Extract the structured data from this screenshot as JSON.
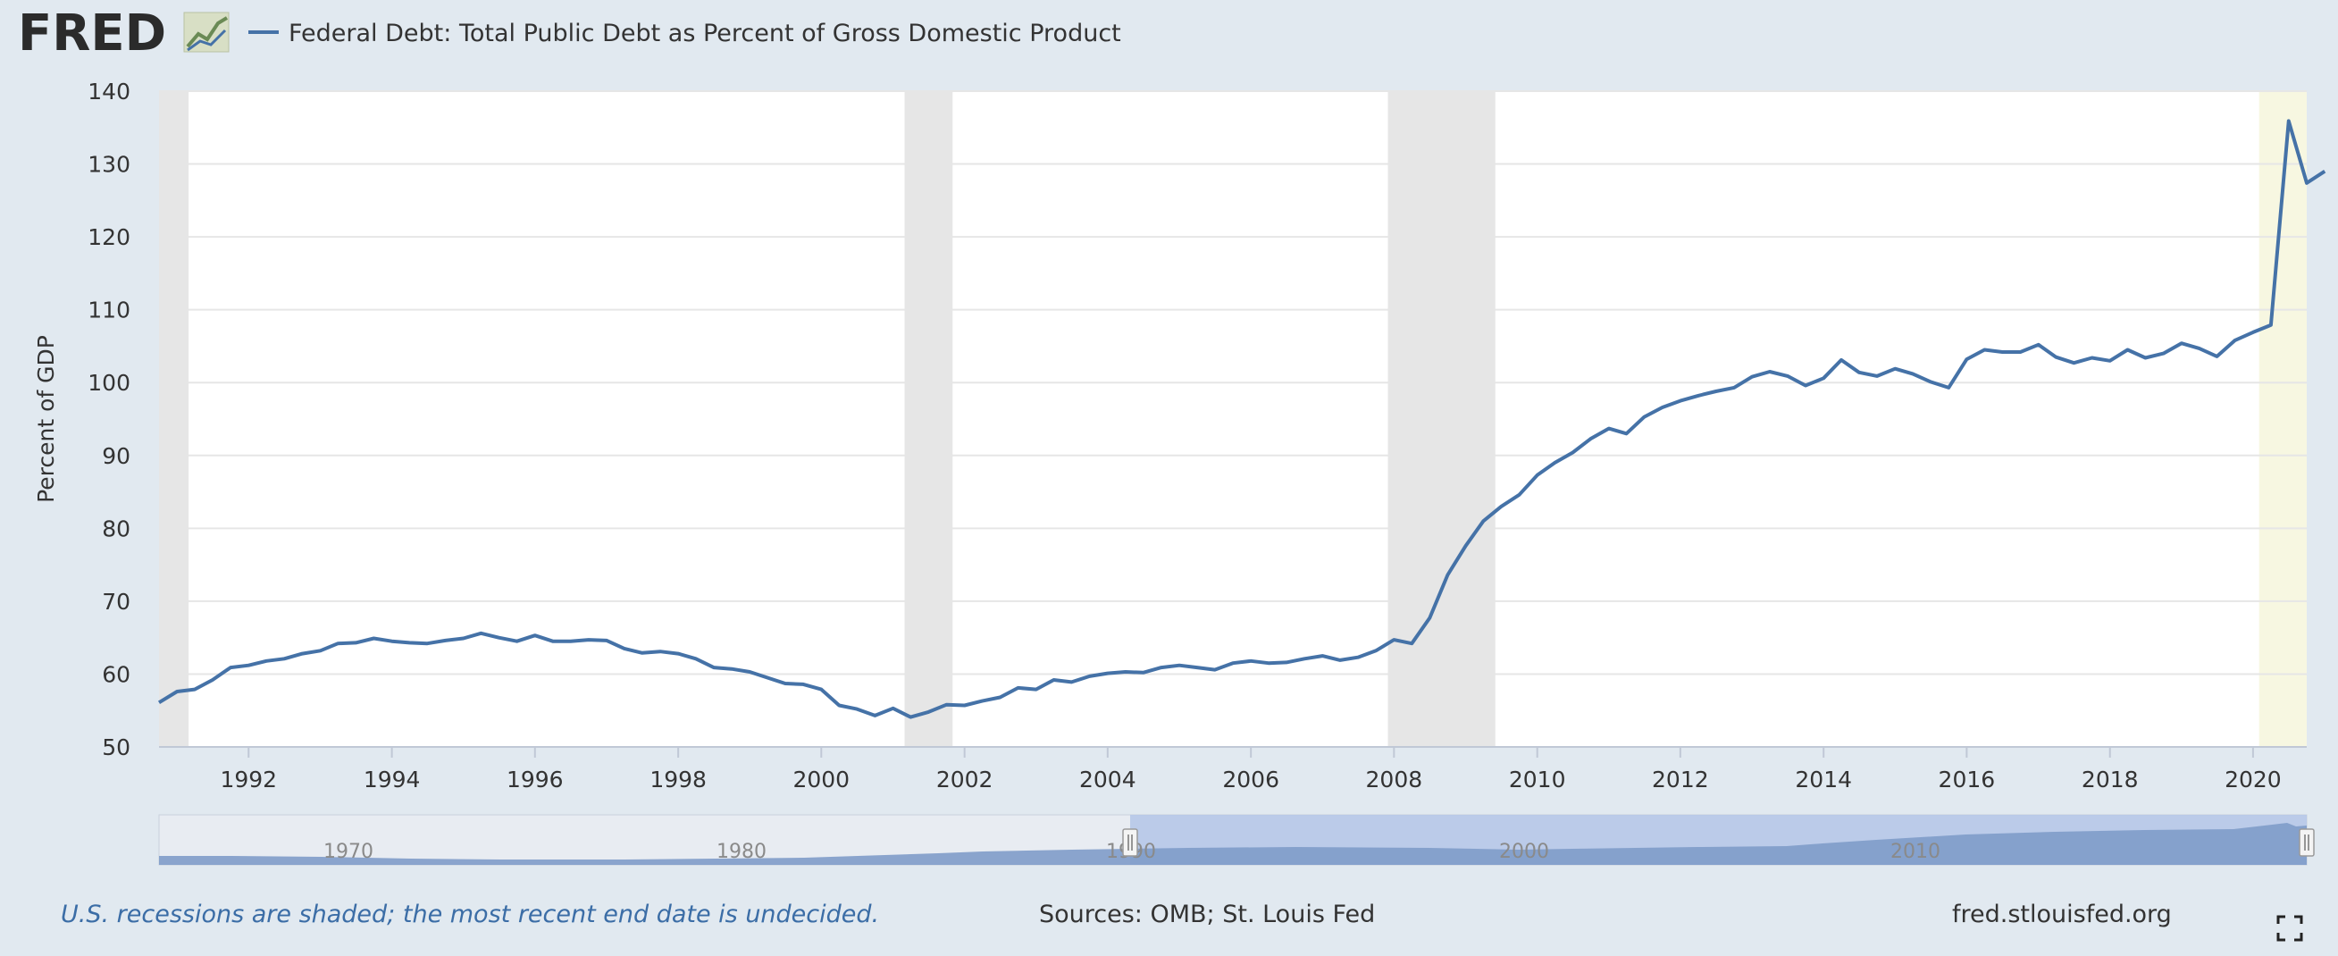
{
  "header": {
    "logo_text": "FRED",
    "logo_icon": "line-graph-icon",
    "series_title": "Federal Debt: Total Public Debt as Percent of Gross Domestic Product"
  },
  "colors": {
    "series": "#4572a7",
    "recession_shade": "#e6e6e6",
    "undecided_recession_shade": "#f7f7e1",
    "background": "#e1e9f0",
    "plot_background": "#ffffff"
  },
  "chart_data": {
    "type": "line",
    "xlabel": "",
    "ylabel": "Percent of GDP",
    "ylim": [
      50,
      140
    ],
    "xlim": [
      "1990-10-01",
      "2020-10-01"
    ],
    "y_ticks": [
      50,
      60,
      70,
      80,
      90,
      100,
      110,
      120,
      130,
      140
    ],
    "x_ticks": [
      "1992",
      "1994",
      "1996",
      "1998",
      "2000",
      "2002",
      "2004",
      "2006",
      "2008",
      "2010",
      "2012",
      "2014",
      "2016",
      "2018",
      "2020"
    ],
    "grid": true,
    "recessions": [
      {
        "start": "1990-07-01",
        "end": "1991-03-01"
      },
      {
        "start": "2001-03-01",
        "end": "2001-11-01"
      },
      {
        "start": "2007-12-01",
        "end": "2009-06-01"
      },
      {
        "start": "2020-02-01",
        "end": null
      }
    ],
    "series": [
      {
        "name": "Federal Debt: Total Public Debt as Percent of Gross Domestic Product",
        "frequency": "quarterly",
        "start": "1990-10-01",
        "values": [
          56.1,
          57.6,
          57.9,
          59.2,
          60.9,
          61.2,
          61.8,
          62.1,
          62.8,
          63.2,
          64.2,
          64.3,
          64.9,
          64.5,
          64.3,
          64.2,
          64.6,
          64.9,
          65.6,
          65.0,
          64.5,
          65.3,
          64.5,
          64.5,
          64.7,
          64.6,
          63.5,
          62.9,
          63.1,
          62.8,
          62.1,
          60.9,
          60.7,
          60.3,
          59.5,
          58.7,
          58.6,
          57.9,
          55.7,
          55.2,
          54.3,
          55.3,
          54.1,
          54.8,
          55.8,
          55.7,
          56.3,
          56.8,
          58.1,
          57.9,
          59.2,
          58.9,
          59.7,
          60.1,
          60.3,
          60.2,
          60.9,
          61.2,
          60.9,
          60.6,
          61.5,
          61.8,
          61.5,
          61.6,
          62.1,
          62.5,
          61.9,
          62.3,
          63.2,
          64.7,
          64.2,
          67.7,
          73.6,
          77.6,
          81.0,
          83.0,
          84.6,
          87.3,
          89.0,
          90.4,
          92.3,
          93.7,
          93.0,
          95.3,
          96.6,
          97.5,
          98.2,
          98.8,
          99.3,
          100.8,
          101.5,
          100.9,
          99.6,
          100.6,
          103.1,
          101.4,
          100.9,
          101.9,
          101.2,
          100.1,
          99.3,
          103.2,
          104.5,
          104.2,
          104.2,
          105.2,
          103.5,
          102.7,
          103.4,
          103.0,
          104.5,
          103.4,
          104.0,
          105.4,
          104.7,
          103.6,
          105.8,
          106.9,
          107.9,
          135.9,
          127.4,
          129.0
        ]
      }
    ]
  },
  "navigator": {
    "labels": [
      "1970",
      "1980",
      "1990",
      "2000",
      "2010"
    ]
  },
  "footer": {
    "recession_note": "U.S. recessions are shaded; the most recent end date is undecided.",
    "sources": "Sources: OMB; St. Louis Fed",
    "site": "fred.stlouisfed.org"
  },
  "controls": {
    "fullscreen_icon": "fullscreen-icon"
  }
}
